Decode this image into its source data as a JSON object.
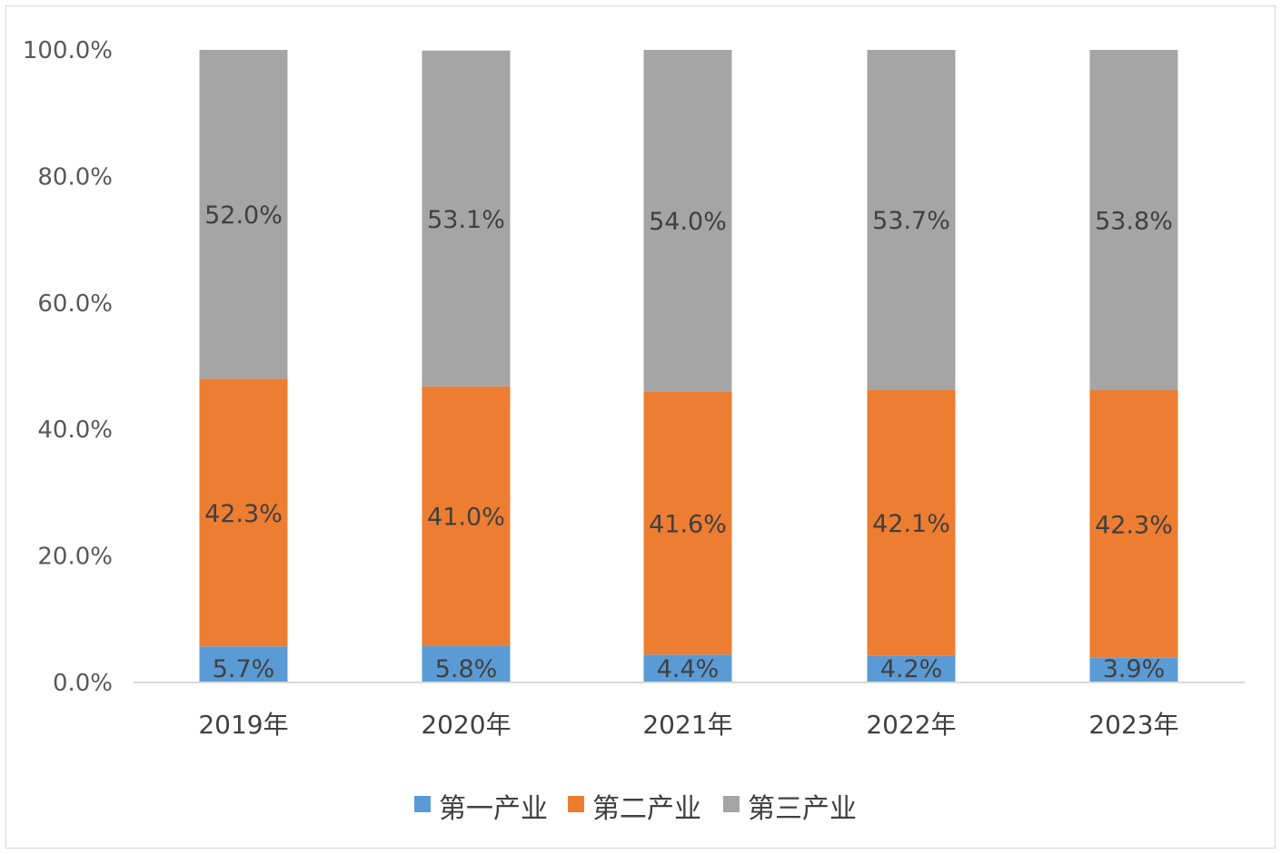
{
  "chart_data": {
    "type": "bar",
    "stacked": true,
    "categories": [
      "2019年",
      "2020年",
      "2021年",
      "2022年",
      "2023年"
    ],
    "series": [
      {
        "name": "第一产业",
        "color": "#5b9bd5",
        "values": [
          5.7,
          5.8,
          4.4,
          4.2,
          3.9
        ],
        "labels": [
          "5.7%",
          "5.8%",
          "4.4%",
          "4.2%",
          "3.9%"
        ]
      },
      {
        "name": "第二产业",
        "color": "#ed7d31",
        "values": [
          42.3,
          41.0,
          41.6,
          42.1,
          42.3
        ],
        "labels": [
          "42.3%",
          "41.0%",
          "41.6%",
          "42.1%",
          "42.3%"
        ]
      },
      {
        "name": "第三产业",
        "color": "#a5a5a5",
        "values": [
          52.0,
          53.1,
          54.0,
          53.7,
          53.8
        ],
        "labels": [
          "52.0%",
          "53.1%",
          "54.0%",
          "53.7%",
          "53.8%"
        ]
      }
    ],
    "yticks": [
      "0.0%",
      "20.0%",
      "40.0%",
      "60.0%",
      "80.0%",
      "100.0%"
    ],
    "ylim": [
      0,
      100
    ],
    "grid": false,
    "legend_position": "bottom"
  }
}
